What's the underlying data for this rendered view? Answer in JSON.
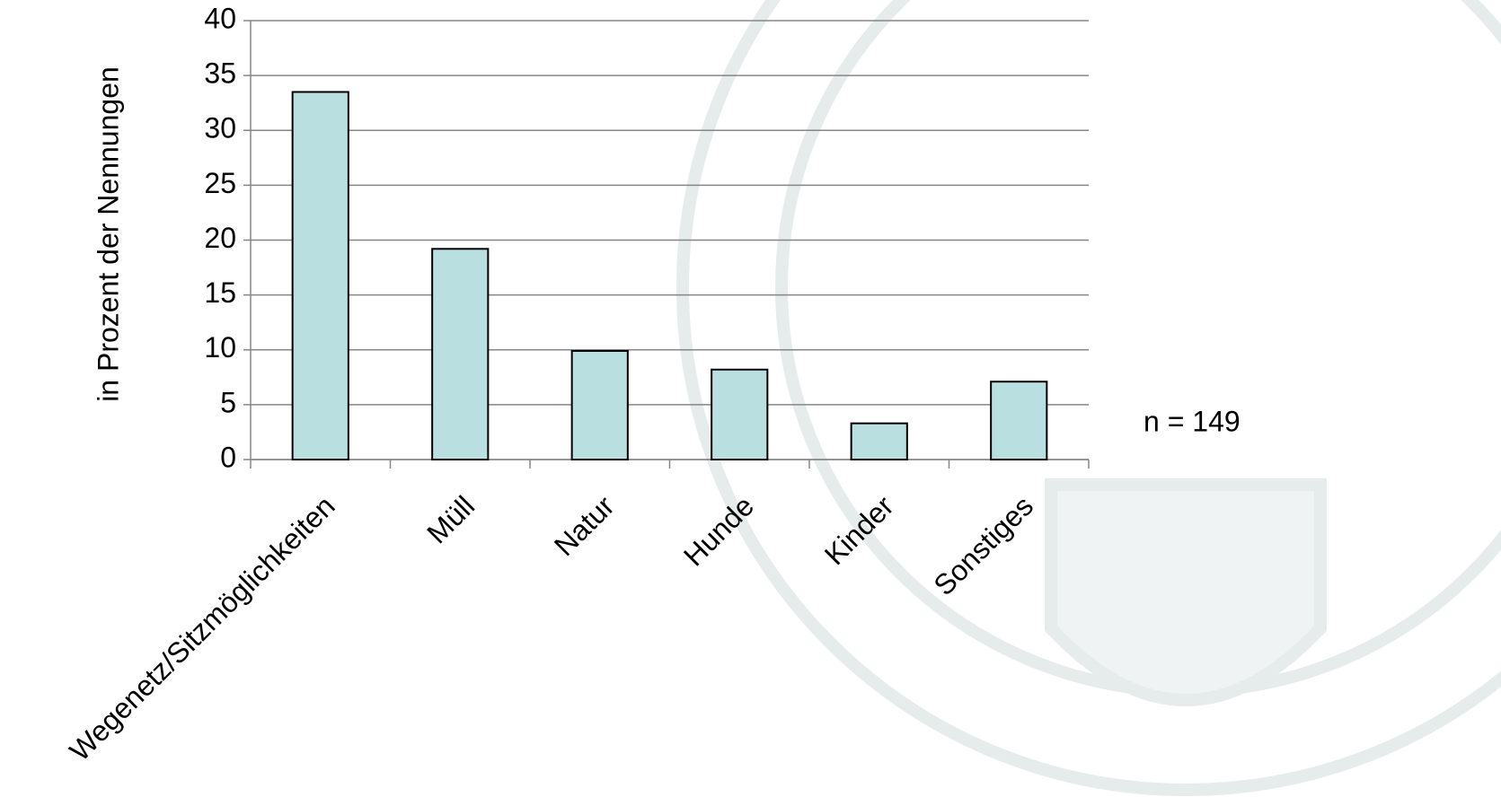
{
  "chart_data": {
    "type": "bar",
    "y_axis_label": "in Prozent der Nennungen",
    "annotation": "n = 149",
    "categories": [
      "Wegenetz/Sitzmöglichkeiten",
      "Müll",
      "Natur",
      "Hunde",
      "Kinder",
      "Sonstiges"
    ],
    "values": [
      33.5,
      19.2,
      9.9,
      8.2,
      3.3,
      7.1
    ],
    "color": "#b9dfe0",
    "ylim": [
      0,
      40
    ],
    "yticks": [
      0,
      5,
      10,
      15,
      20,
      25,
      30,
      35,
      40
    ],
    "grid": true
  }
}
